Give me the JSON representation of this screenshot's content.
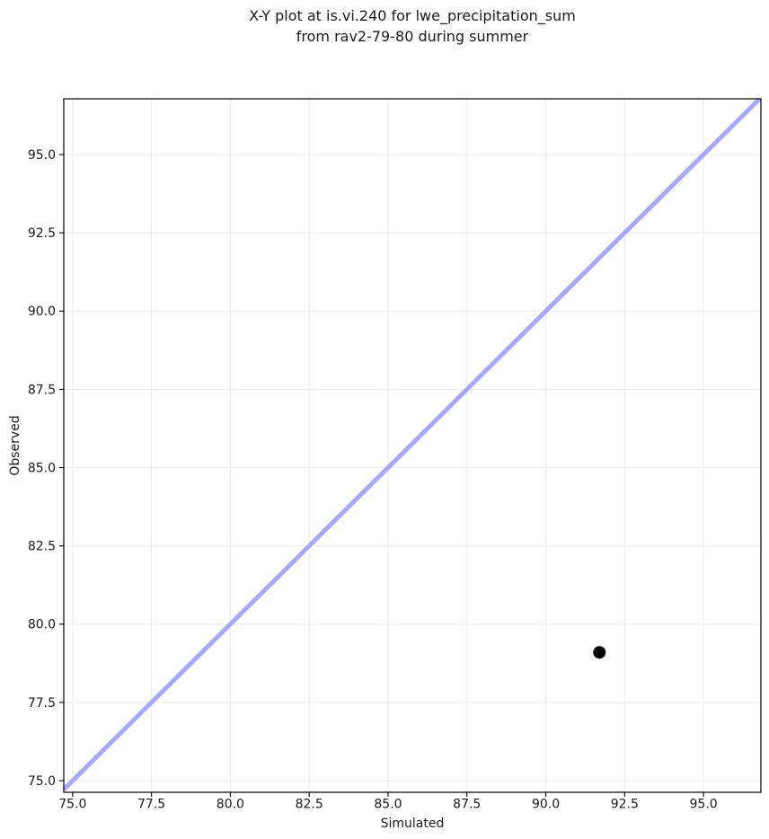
{
  "title": {
    "line1": "X-Y plot at is.vi.240 for lwe_precipitation_sum",
    "line2": "from rav2-79-80 during summer"
  },
  "chart_data": {
    "type": "scatter",
    "title": "X-Y plot at is.vi.240 for lwe_precipitation_sum\nfrom rav2-79-80 during summer",
    "xlabel": "Simulated",
    "ylabel": "Observed",
    "xlim": [
      74.72,
      96.82
    ],
    "ylim": [
      74.63,
      96.78
    ],
    "xticks": [
      75.0,
      77.5,
      80.0,
      82.5,
      85.0,
      87.5,
      90.0,
      92.5,
      95.0
    ],
    "yticks": [
      75.0,
      77.5,
      80.0,
      82.5,
      85.0,
      87.5,
      90.0,
      92.5,
      95.0
    ],
    "grid": true,
    "legend": false,
    "identity_line": {
      "description": "y equals x reference line spanning the full axis range",
      "color": "#a8a8f8",
      "width": 5
    },
    "points": [
      {
        "x": 91.7,
        "y": 79.1
      }
    ],
    "point_style": {
      "color": "#000000",
      "radius": 7
    },
    "colors": {
      "grid": "#e9e9e9",
      "spine": "#000000",
      "text": "#1a1a1a",
      "background": "#ffffff"
    }
  }
}
